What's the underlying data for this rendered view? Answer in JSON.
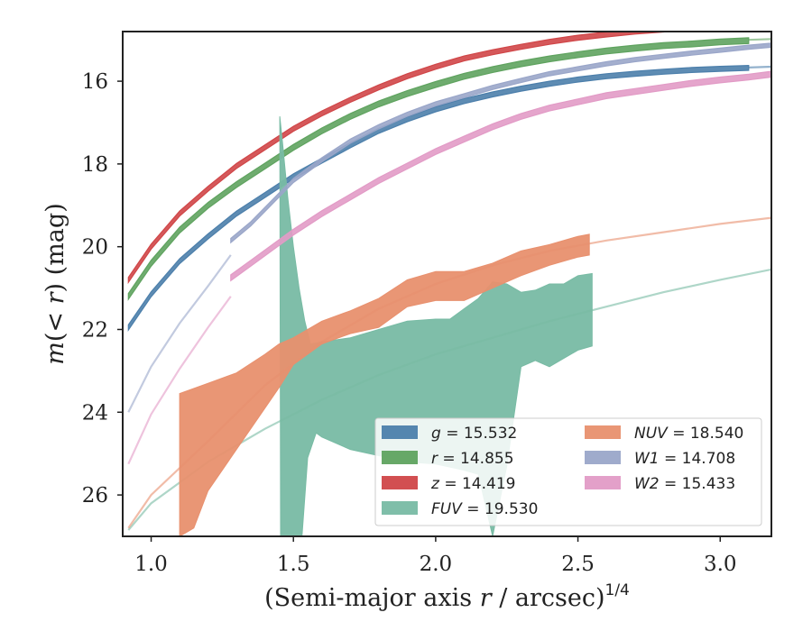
{
  "chart_data": {
    "type": "line",
    "xlabel": "(Semi-major axis r / arcsec)^1/4",
    "xlabel_parts": {
      "main": "(Semi-major axis ",
      "var": "r",
      "rest": " / arcsec)",
      "sup": "1/4"
    },
    "ylabel": "m(< r) (mag)",
    "ylabel_parts": {
      "var": "m",
      "open": "(",
      "lt": "< ",
      "r": "r",
      "close": ")",
      "unit": " (mag)"
    },
    "xlim": [
      0.9,
      3.18
    ],
    "ylim": [
      27.0,
      14.8
    ],
    "y_inverted": true,
    "x_ticks": [
      1.0,
      1.5,
      2.0,
      2.5,
      3.0
    ],
    "x_tick_labels": [
      "1.0",
      "1.5",
      "2.0",
      "2.5",
      "3.0"
    ],
    "y_ticks": [
      16,
      18,
      20,
      22,
      24,
      26
    ],
    "y_tick_labels": [
      "16",
      "18",
      "20",
      "22",
      "24",
      "26"
    ],
    "grid": false,
    "legend_position": "lower-right",
    "legend_columns": 2,
    "series": [
      {
        "name": "g = 15.532",
        "band": "g",
        "mag": "15.532",
        "color": "#4c7fab",
        "measured": {
          "x": [
            0.92,
            1.0,
            1.1,
            1.2,
            1.3,
            1.4,
            1.5,
            1.6,
            1.7,
            1.8,
            1.9,
            2.0,
            2.1,
            2.2,
            2.3,
            2.4,
            2.5,
            2.6,
            2.7,
            2.8,
            2.9,
            3.0,
            3.1
          ],
          "y": [
            21.95,
            21.15,
            20.35,
            19.75,
            19.2,
            18.75,
            18.3,
            17.92,
            17.55,
            17.2,
            16.92,
            16.68,
            16.48,
            16.32,
            16.18,
            16.06,
            15.96,
            15.88,
            15.82,
            15.77,
            15.73,
            15.7,
            15.68
          ],
          "band_width": 0.12
        },
        "model": {
          "x": [
            3.1,
            3.18
          ],
          "y": [
            15.67,
            15.65
          ]
        }
      },
      {
        "name": "r = 14.855",
        "band": "r",
        "mag": "14.855",
        "color": "#5fa35f",
        "measured": {
          "x": [
            0.92,
            1.0,
            1.1,
            1.2,
            1.3,
            1.4,
            1.5,
            1.6,
            1.7,
            1.8,
            1.9,
            2.0,
            2.1,
            2.2,
            2.3,
            2.4,
            2.5,
            2.6,
            2.7,
            2.8,
            2.9,
            3.0,
            3.1
          ],
          "y": [
            21.2,
            20.4,
            19.6,
            19.0,
            18.5,
            18.05,
            17.6,
            17.2,
            16.85,
            16.55,
            16.3,
            16.08,
            15.88,
            15.72,
            15.58,
            15.46,
            15.36,
            15.27,
            15.2,
            15.14,
            15.1,
            15.05,
            15.02
          ],
          "band_width": 0.14
        },
        "model": {
          "x": [
            3.1,
            3.18
          ],
          "y": [
            15.0,
            14.98
          ]
        }
      },
      {
        "name": "z = 14.419",
        "band": "z",
        "mag": "14.419",
        "color": "#d04648",
        "measured": {
          "x": [
            0.92,
            1.0,
            1.1,
            1.2,
            1.3,
            1.4,
            1.5,
            1.6,
            1.7,
            1.8,
            1.9,
            2.0,
            2.1,
            2.2,
            2.3,
            2.4,
            2.5,
            2.6,
            2.7,
            2.8,
            2.9,
            3.0,
            3.1,
            3.18
          ],
          "y": [
            20.8,
            20.0,
            19.2,
            18.6,
            18.05,
            17.6,
            17.15,
            16.78,
            16.45,
            16.15,
            15.88,
            15.65,
            15.45,
            15.3,
            15.17,
            15.05,
            14.95,
            14.87,
            14.8,
            14.75,
            14.7,
            14.66,
            14.63,
            14.61
          ],
          "band_width": 0.12
        }
      },
      {
        "name": "FUV = 19.530",
        "band": "FUV",
        "mag": "19.530",
        "color": "#78bba4",
        "polygon": {
          "upper_x": [
            1.452,
            1.462,
            1.48,
            1.5,
            1.52,
            1.54,
            1.56,
            1.6,
            1.7,
            1.8,
            1.9,
            2.0,
            2.05,
            2.1,
            2.15,
            2.2,
            2.25,
            2.3,
            2.35,
            2.4,
            2.45,
            2.5,
            2.55
          ],
          "upper_y": [
            16.85,
            17.5,
            18.8,
            20.0,
            21.0,
            21.8,
            22.35,
            22.3,
            22.2,
            22.0,
            21.8,
            21.75,
            21.75,
            21.5,
            21.25,
            20.85,
            20.9,
            21.1,
            21.05,
            20.9,
            20.9,
            20.7,
            20.65
          ],
          "lower_x": [
            2.55,
            2.5,
            2.45,
            2.4,
            2.35,
            2.3,
            2.25,
            2.2,
            2.15,
            2.1,
            2.0,
            1.9,
            1.8,
            1.7,
            1.6,
            1.58,
            1.55,
            1.53,
            1.52,
            1.46,
            1.455
          ],
          "lower_y": [
            22.4,
            22.5,
            22.7,
            22.9,
            22.75,
            22.9,
            25.3,
            27.0,
            25.5,
            25.4,
            25.25,
            25.2,
            25.05,
            24.9,
            24.6,
            24.5,
            25.1,
            27.0,
            27.0,
            27.0,
            27.0
          ]
        },
        "model": {
          "x": [
            0.92,
            1.0,
            1.2,
            1.4,
            1.6,
            1.8,
            2.0,
            2.2,
            2.4,
            2.6,
            2.8,
            3.0,
            3.18
          ],
          "y": [
            26.85,
            26.2,
            25.2,
            24.4,
            23.7,
            23.1,
            22.6,
            22.2,
            21.8,
            21.45,
            21.1,
            20.8,
            20.55
          ]
        }
      },
      {
        "name": "NUV = 18.540",
        "band": "NUV",
        "mag": "18.540",
        "color": "#e8906e",
        "polygon": {
          "upper_x": [
            1.1,
            1.2,
            1.3,
            1.4,
            1.45,
            1.5,
            1.6,
            1.7,
            1.8,
            1.9,
            2.0,
            2.1,
            2.2,
            2.3,
            2.4,
            2.5,
            2.54
          ],
          "upper_y": [
            23.55,
            23.3,
            23.05,
            22.6,
            22.35,
            22.2,
            21.8,
            21.55,
            21.25,
            20.8,
            20.6,
            20.6,
            20.4,
            20.1,
            19.95,
            19.75,
            19.7
          ],
          "lower_x": [
            2.54,
            2.5,
            2.4,
            2.3,
            2.2,
            2.1,
            2.0,
            1.9,
            1.8,
            1.7,
            1.6,
            1.5,
            1.45,
            1.4,
            1.3,
            1.2,
            1.15,
            1.1
          ],
          "lower_y": [
            20.2,
            20.25,
            20.45,
            20.7,
            21.0,
            21.3,
            21.3,
            21.45,
            21.95,
            22.1,
            22.35,
            22.85,
            23.4,
            23.9,
            24.9,
            25.9,
            26.8,
            27.0
          ]
        },
        "model": {
          "x": [
            0.92,
            1.0,
            1.2,
            1.4,
            1.6,
            1.8,
            2.0,
            2.2,
            2.4,
            2.6,
            2.8,
            3.0,
            3.18
          ],
          "y": [
            26.8,
            26.0,
            24.7,
            23.35,
            22.3,
            21.5,
            20.9,
            20.45,
            20.1,
            19.85,
            19.65,
            19.45,
            19.3
          ]
        }
      },
      {
        "name": "W1 = 14.708",
        "band": "W1",
        "mag": "14.708",
        "color": "#9aa6c9",
        "measured": {
          "x": [
            1.28,
            1.35,
            1.45,
            1.5,
            1.6,
            1.7,
            1.8,
            1.9,
            2.0,
            2.1,
            2.2,
            2.3,
            2.4,
            2.5,
            2.6,
            2.7,
            2.8,
            2.9,
            3.0,
            3.1,
            3.18
          ],
          "y": [
            19.85,
            19.45,
            18.75,
            18.4,
            17.9,
            17.45,
            17.1,
            16.8,
            16.55,
            16.35,
            16.15,
            15.98,
            15.82,
            15.7,
            15.58,
            15.48,
            15.4,
            15.32,
            15.25,
            15.18,
            15.13
          ],
          "band_width": 0.1
        },
        "model": {
          "x": [
            0.92,
            1.0,
            1.1,
            1.2,
            1.28
          ],
          "y": [
            24.0,
            22.9,
            21.85,
            20.95,
            20.2
          ]
        }
      },
      {
        "name": "W2 = 15.433",
        "band": "W2",
        "mag": "15.433",
        "color": "#e29bc6",
        "measured": {
          "x": [
            1.28,
            1.35,
            1.45,
            1.5,
            1.6,
            1.7,
            1.8,
            1.9,
            2.0,
            2.1,
            2.2,
            2.3,
            2.4,
            2.5,
            2.6,
            2.7,
            2.8,
            2.9,
            3.0,
            3.1,
            3.18
          ],
          "y": [
            20.75,
            20.4,
            19.9,
            19.65,
            19.2,
            18.8,
            18.4,
            18.05,
            17.7,
            17.4,
            17.1,
            16.85,
            16.65,
            16.5,
            16.35,
            16.25,
            16.15,
            16.05,
            15.97,
            15.9,
            15.83
          ],
          "band_width": 0.14
        },
        "model": {
          "x": [
            0.92,
            1.0,
            1.1,
            1.2,
            1.28
          ],
          "y": [
            25.25,
            24.05,
            22.95,
            21.95,
            21.2
          ]
        }
      }
    ]
  }
}
